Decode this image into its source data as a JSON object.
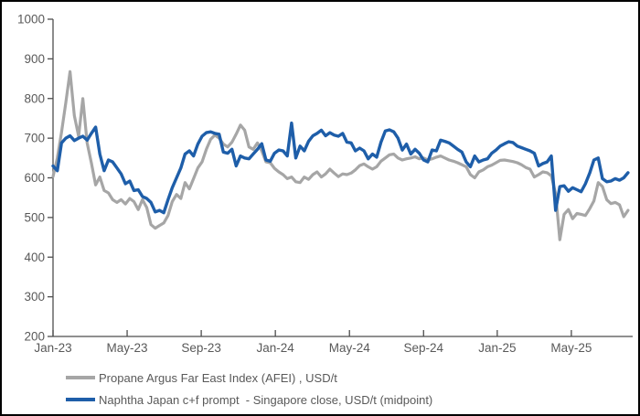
{
  "chart_data": {
    "type": "line",
    "title": "",
    "grid": false,
    "legend_position": "bottom-left",
    "x_axis": {
      "unit": "date, weekly samples from Jan-2023 to mid-Aug-2025",
      "tick_labels": [
        "Jan-23",
        "May-23",
        "Sep-23",
        "Jan-24",
        "May-24",
        "Sep-24",
        "Jan-25",
        "May-25"
      ],
      "tick_positions_weeks": [
        0,
        17.4,
        34.8,
        52.2,
        69.6,
        87.0,
        104.3,
        121.7
      ],
      "axis_min_weeks": 0,
      "axis_max_weeks": 136.1
    },
    "y_axis": {
      "min": 200,
      "max": 1000,
      "step": 100,
      "tick_labels": [
        "200",
        "300",
        "400",
        "500",
        "600",
        "700",
        "800",
        "900",
        "1000"
      ]
    },
    "series": [
      {
        "name": "Propane Argus Far East Index (AFEI) , USD/t",
        "color": "#A6A6A6",
        "stroke_width": 3.2,
        "x_weeks_start": 0,
        "x_weeks_step": 1,
        "values": [
          603,
          650,
          715,
          790,
          868,
          757,
          705,
          800,
          688,
          638,
          582,
          602,
          568,
          562,
          545,
          538,
          545,
          534,
          548,
          540,
          520,
          545,
          525,
          482,
          473,
          480,
          486,
          505,
          540,
          558,
          548,
          588,
          572,
          598,
          625,
          640,
          672,
          697,
          708,
          700,
          685,
          678,
          690,
          710,
          733,
          720,
          678,
          672,
          688,
          668,
          640,
          638,
          624,
          615,
          608,
          598,
          602,
          590,
          588,
          602,
          596,
          608,
          615,
          602,
          610,
          622,
          612,
          603,
          610,
          608,
          612,
          620,
          631,
          635,
          628,
          622,
          628,
          642,
          650,
          658,
          660,
          650,
          645,
          648,
          650,
          653,
          648,
          650,
          645,
          648,
          652,
          655,
          650,
          645,
          642,
          638,
          633,
          628,
          608,
          600,
          615,
          620,
          628,
          632,
          638,
          644,
          645,
          643,
          641,
          638,
          633,
          626,
          622,
          602,
          608,
          615,
          613,
          605,
          560,
          444,
          508,
          520,
          497,
          510,
          508,
          505,
          522,
          542,
          588,
          578,
          545,
          535,
          538,
          532,
          502,
          518
        ]
      },
      {
        "name": "Naphtha Japan c+f prompt  - Singapore close, USD/t (midpoint)",
        "color": "#1E5EA9",
        "stroke_width": 3.4,
        "x_weeks_start": 0,
        "x_weeks_step": 1,
        "values": [
          630,
          618,
          688,
          700,
          706,
          694,
          700,
          705,
          695,
          712,
          728,
          660,
          618,
          645,
          640,
          625,
          610,
          585,
          592,
          568,
          570,
          553,
          548,
          538,
          514,
          518,
          512,
          545,
          575,
          600,
          625,
          660,
          668,
          655,
          685,
          705,
          714,
          716,
          712,
          710,
          665,
          662,
          672,
          630,
          655,
          650,
          648,
          660,
          672,
          686,
          645,
          642,
          662,
          670,
          668,
          655,
          738,
          650,
          680,
          668,
          692,
          706,
          712,
          720,
          706,
          714,
          708,
          705,
          712,
          690,
          688,
          668,
          675,
          668,
          648,
          660,
          652,
          690,
          718,
          721,
          716,
          700,
          670,
          685,
          660,
          672,
          662,
          645,
          640,
          670,
          668,
          695,
          692,
          688,
          680,
          672,
          665,
          640,
          628,
          655,
          640,
          645,
          648,
          662,
          670,
          680,
          686,
          691,
          689,
          680,
          676,
          672,
          668,
          662,
          630,
          636,
          640,
          655,
          518,
          578,
          580,
          566,
          575,
          570,
          565,
          585,
          612,
          645,
          650,
          598,
          590,
          592,
          598,
          594,
          600,
          613
        ]
      }
    ]
  },
  "legend": {
    "items": [
      {
        "label": "Propane Argus Far East Index (AFEI) , USD/t",
        "color": "#A6A6A6"
      },
      {
        "label": "Naphtha Japan c+f prompt  - Singapore close, USD/t (midpoint)",
        "color": "#1E5EA9"
      }
    ]
  },
  "colors": {
    "background": "#FFFFFF",
    "frame_border": "#000000",
    "axis_line": "#4D4D4D",
    "tick_text": "#595959",
    "legend_text": "#595959"
  }
}
